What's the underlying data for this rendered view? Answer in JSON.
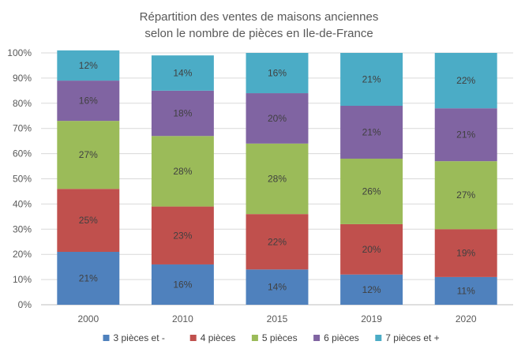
{
  "chart_data": {
    "type": "bar",
    "stacked": true,
    "title": "Répartition des ventes de maisons anciennes",
    "subtitle": "selon le nombre de pièces en Ile-de-France",
    "xlabel": "",
    "ylabel": "",
    "ylim": [
      0,
      100
    ],
    "y_ticks": [
      "0%",
      "10%",
      "20%",
      "30%",
      "40%",
      "50%",
      "60%",
      "70%",
      "80%",
      "90%",
      "100%"
    ],
    "categories": [
      "2000",
      "2010",
      "2015",
      "2019",
      "2020"
    ],
    "series": [
      {
        "name": "3 pièces et -",
        "color": "#4f81bd",
        "values": [
          21,
          16,
          14,
          12,
          11
        ]
      },
      {
        "name": "4 pièces",
        "color": "#c0504d",
        "values": [
          25,
          23,
          22,
          20,
          19
        ]
      },
      {
        "name": "5 pièces",
        "color": "#9bbb59",
        "values": [
          27,
          28,
          28,
          26,
          27
        ]
      },
      {
        "name": "6 pièces",
        "color": "#8064a2",
        "values": [
          16,
          18,
          20,
          21,
          21
        ]
      },
      {
        "name": "7 pièces et +",
        "color": "#4bacc6",
        "values": [
          12,
          14,
          16,
          21,
          22
        ]
      }
    ],
    "grid": true,
    "legend_position": "bottom"
  }
}
